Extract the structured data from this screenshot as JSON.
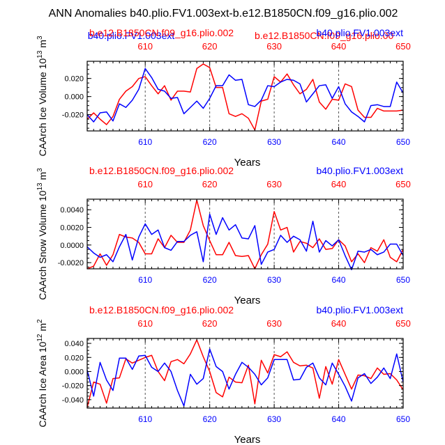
{
  "figure": {
    "title": "ANN Anomalies b40.plio.FV1.003ext-b.e12.B1850CN.f09_g16.plio.002",
    "overlap_top_left": "b40.plio.FV1.003ext",
    "overlap_top_right": "b.e12.B1850CN.f09_g16.plio.00"
  },
  "colors": {
    "red": "#ff0000",
    "blue": "#0000ff",
    "axis": "#000000",
    "grid": "#555555"
  },
  "chart_data": [
    {
      "type": "line",
      "title": "",
      "xlabel": "Years",
      "ylabel": "CAArch Ice Volume",
      "yunit_base": "10",
      "yunit_exp": "13",
      "yunit_name": "m",
      "yunit_name_exp": "3",
      "top_left_label": "b.e12.B1850CN.f09_g16.plio.002",
      "top_right_label": "b40.plio.FV1.003ext",
      "xlim": [
        601,
        650
      ],
      "ylim": [
        -0.038,
        0.039
      ],
      "xticks": [
        610,
        620,
        630,
        640,
        650
      ],
      "xtick_labels": [
        "610",
        "620",
        "630",
        "640",
        "650"
      ],
      "yticks": [
        -0.02,
        0,
        0.02
      ],
      "ytick_labels": [
        "-0.020",
        "0.000",
        "0.020"
      ],
      "grid_x": [
        610,
        620,
        630,
        640
      ],
      "series": [
        {
          "name": "b.e12.B1850CN.f09_g16.plio.002",
          "color": "#ff0000",
          "x": [
            601,
            602,
            603,
            604,
            605,
            606,
            607,
            608,
            609,
            610,
            611,
            612,
            613,
            614,
            615,
            616,
            617,
            618,
            619,
            620,
            621,
            622,
            623,
            624,
            625,
            626,
            627,
            628,
            629,
            630,
            631,
            632,
            633,
            634,
            635,
            636,
            637,
            638,
            639,
            640,
            641,
            642,
            643,
            644,
            645,
            646,
            647,
            648,
            649,
            650
          ],
          "values": [
            -0.025,
            -0.018,
            -0.025,
            -0.031,
            -0.022,
            -0.003,
            0.006,
            0.011,
            0.02,
            0.022,
            0.012,
            0.003,
            0.012,
            -0.004,
            0.006,
            0.006,
            0.005,
            0.031,
            0.036,
            0.032,
            0.01,
            0.01,
            -0.019,
            -0.022,
            -0.019,
            -0.024,
            -0.037,
            -0.005,
            -0.003,
            0.022,
            0.016,
            0.025,
            0.013,
            0.003,
            0.008,
            0.019,
            -0.006,
            -0.014,
            -0.003,
            -0.004,
            0.014,
            0.011,
            -0.015,
            -0.023,
            -0.023,
            -0.013,
            -0.016,
            -0.016,
            -0.016,
            -0.015
          ]
        },
        {
          "name": "b40.plio.FV1.003ext",
          "color": "#0000ff",
          "x": [
            601,
            602,
            603,
            604,
            605,
            606,
            607,
            608,
            609,
            610,
            611,
            612,
            613,
            614,
            615,
            616,
            617,
            618,
            619,
            620,
            621,
            622,
            623,
            624,
            625,
            626,
            627,
            628,
            629,
            630,
            631,
            632,
            633,
            634,
            635,
            636,
            637,
            638,
            639,
            640,
            641,
            642,
            643,
            644,
            645,
            646,
            647,
            648,
            649,
            650
          ],
          "values": [
            -0.02,
            -0.028,
            -0.018,
            -0.017,
            -0.027,
            -0.008,
            -0.012,
            -0.004,
            0.008,
            0.031,
            0.021,
            0.008,
            0.006,
            -0.002,
            -0.001,
            -0.019,
            -0.012,
            -0.005,
            -0.013,
            -0.002,
            0.012,
            0.012,
            0.024,
            0.018,
            0.019,
            -0.009,
            -0.011,
            -0.004,
            0.012,
            0.011,
            0.016,
            0.019,
            0.018,
            0.014,
            -0.006,
            0.003,
            0.012,
            0.013,
            -0.002,
            0.011,
            -0.008,
            -0.017,
            -0.022,
            -0.028,
            -0.01,
            -0.009,
            -0.011,
            -0.011,
            0.016,
            0.004
          ]
        }
      ]
    },
    {
      "type": "line",
      "title": "",
      "xlabel": "Years",
      "ylabel": "CAArch Snow Volume",
      "yunit_base": "10",
      "yunit_exp": "13",
      "yunit_name": "m",
      "yunit_name_exp": "3",
      "top_left_label": "b.e12.B1850CN.f09_g16.plio.002",
      "top_right_label": "b40.plio.FV1.003ext",
      "xlim": [
        601,
        650
      ],
      "ylim": [
        -0.0027,
        0.0052
      ],
      "xticks": [
        610,
        620,
        630,
        640,
        650
      ],
      "xtick_labels": [
        "610",
        "620",
        "630",
        "640",
        "650"
      ],
      "yticks": [
        -0.002,
        0,
        0.002,
        0.004
      ],
      "ytick_labels": [
        "-0.0020",
        "0.0000",
        "0.0020",
        "0.0040"
      ],
      "grid_x": [
        610,
        620,
        630,
        640
      ],
      "series": [
        {
          "name": "b.e12.B1850CN.f09_g16.plio.002",
          "color": "#ff0000",
          "x": [
            601,
            602,
            603,
            604,
            605,
            606,
            607,
            608,
            609,
            610,
            611,
            612,
            613,
            614,
            615,
            616,
            617,
            618,
            619,
            620,
            621,
            622,
            623,
            624,
            625,
            626,
            627,
            628,
            629,
            630,
            631,
            632,
            633,
            634,
            635,
            636,
            637,
            638,
            639,
            640,
            641,
            642,
            643,
            644,
            645,
            646,
            647,
            648,
            649,
            650
          ],
          "values": [
            -0.0027,
            -0.0024,
            -0.001,
            -0.0023,
            -0.0011,
            0.0012,
            0.0009,
            0.0008,
            0.0003,
            -0.001,
            -0.001,
            0.0007,
            -0.0003,
            0.0011,
            0.0003,
            0.0003,
            0.0017,
            0.0051,
            0.0022,
            0.0005,
            -0.0011,
            -0.0011,
            0.0003,
            -0.0012,
            -0.0013,
            -0.0012,
            -0.0027,
            -0.0011,
            0.0001,
            0.0038,
            0.0017,
            0.002,
            -0.0008,
            0.0004,
            0.0002,
            -0.0003,
            0.0007,
            -0.0005,
            -0.0004,
            0.0006,
            -0.0001,
            -0.0019,
            -0.001,
            -0.002,
            -0.0003,
            -0.0007,
            0.0006,
            -0.0014,
            -0.0019,
            -0.0005
          ]
        },
        {
          "name": "b40.plio.FV1.003ext",
          "color": "#0000ff",
          "x": [
            601,
            602,
            603,
            604,
            605,
            606,
            607,
            608,
            609,
            610,
            611,
            612,
            613,
            614,
            615,
            616,
            617,
            618,
            619,
            620,
            621,
            622,
            623,
            624,
            625,
            626,
            627,
            628,
            629,
            630,
            631,
            632,
            633,
            634,
            635,
            636,
            637,
            638,
            639,
            640,
            641,
            642,
            643,
            644,
            645,
            646,
            647,
            648,
            649,
            650
          ],
          "values": [
            -0.0002,
            -0.0009,
            -0.0014,
            -0.0011,
            -0.0019,
            -0.0002,
            0.0012,
            -0.0017,
            0.0009,
            0.0024,
            0.0012,
            0.0017,
            -0.0003,
            -0.0006,
            0.0004,
            0.0004,
            0.0011,
            0.0015,
            -0.0019,
            0.0035,
            0.0012,
            0.0031,
            0.0017,
            0.0023,
            0.0008,
            0.0007,
            0.0022,
            -0.0022,
            -0.0008,
            -0.0005,
            0.0011,
            0.0003,
            0.001,
            0.0006,
            -0.0007,
            0.0027,
            -0.0008,
            0.0005,
            -0.0001,
            0.0006,
            -0.0012,
            -0.0028,
            -0.0007,
            -0.0008,
            -0.0005,
            -0.0011,
            -0.0008,
            0.0001,
            0.0001,
            -0.0012
          ]
        }
      ]
    },
    {
      "type": "line",
      "title": "",
      "xlabel": "Years",
      "ylabel": "CAArch Ice Area",
      "yunit_base": "10",
      "yunit_exp": "12",
      "yunit_name": "m",
      "yunit_name_exp": "2",
      "top_left_label": "b.e12.B1850CN.f09_g16.plio.002",
      "top_right_label": "b40.plio.FV1.003ext",
      "xlim": [
        601,
        650
      ],
      "ylim": [
        -0.052,
        0.047
      ],
      "xticks": [
        610,
        620,
        630,
        640,
        650
      ],
      "xtick_labels": [
        "610",
        "620",
        "630",
        "640",
        "650"
      ],
      "yticks": [
        -0.04,
        -0.02,
        0,
        0.02,
        0.04
      ],
      "ytick_labels": [
        "-0.040",
        "-0.020",
        "0.000",
        "0.020",
        "0.040"
      ],
      "grid_x": [
        610,
        620,
        630,
        640
      ],
      "series": [
        {
          "name": "b.e12.B1850CN.f09_g16.plio.002",
          "color": "#ff0000",
          "x": [
            601,
            602,
            603,
            604,
            605,
            606,
            607,
            608,
            609,
            610,
            611,
            612,
            613,
            614,
            615,
            616,
            617,
            618,
            619,
            620,
            621,
            622,
            623,
            624,
            625,
            626,
            627,
            628,
            629,
            630,
            631,
            632,
            633,
            634,
            635,
            636,
            637,
            638,
            639,
            640,
            641,
            642,
            643,
            644,
            645,
            646,
            647,
            648,
            649,
            650
          ],
          "values": [
            -0.051,
            -0.015,
            -0.018,
            -0.045,
            -0.01,
            -0.009,
            0.018,
            0.012,
            0.016,
            0.02,
            0.023,
            0.0,
            -0.013,
            0.014,
            0.017,
            0.011,
            0.025,
            0.045,
            0.021,
            0.0,
            -0.03,
            -0.036,
            -0.008,
            -0.015,
            -0.016,
            0.009,
            -0.046,
            0.016,
            -0.002,
            0.024,
            0.021,
            0.028,
            0.013,
            0.008,
            0.009,
            0.005,
            -0.038,
            0.007,
            -0.018,
            0.017,
            -0.004,
            -0.025,
            -0.005,
            -0.006,
            -0.01,
            0.005,
            -0.004,
            -0.003,
            -0.012,
            -0.026
          ]
        },
        {
          "name": "b40.plio.FV1.003ext",
          "color": "#0000ff",
          "x": [
            601,
            602,
            603,
            604,
            605,
            606,
            607,
            608,
            609,
            610,
            611,
            612,
            613,
            614,
            615,
            616,
            617,
            618,
            619,
            620,
            621,
            622,
            623,
            624,
            625,
            626,
            627,
            628,
            629,
            630,
            631,
            632,
            633,
            634,
            635,
            636,
            637,
            638,
            639,
            640,
            641,
            642,
            643,
            644,
            645,
            646,
            647,
            648,
            649,
            650
          ],
          "values": [
            0.002,
            -0.035,
            0.013,
            -0.012,
            -0.027,
            0.019,
            0.019,
            0.003,
            0.022,
            0.023,
            0.006,
            0.0,
            0.012,
            0.0,
            -0.027,
            -0.049,
            -0.004,
            -0.018,
            -0.01,
            0.032,
            0.007,
            0.0,
            -0.025,
            -0.004,
            0.013,
            0.006,
            -0.004,
            -0.019,
            -0.009,
            0.017,
            0.017,
            0.017,
            -0.012,
            -0.011,
            0.006,
            0.012,
            -0.009,
            -0.019,
            0.012,
            -0.004,
            -0.021,
            -0.042,
            -0.009,
            -0.003,
            -0.017,
            -0.008,
            0.005,
            -0.01,
            0.025,
            -0.015
          ]
        }
      ]
    }
  ]
}
